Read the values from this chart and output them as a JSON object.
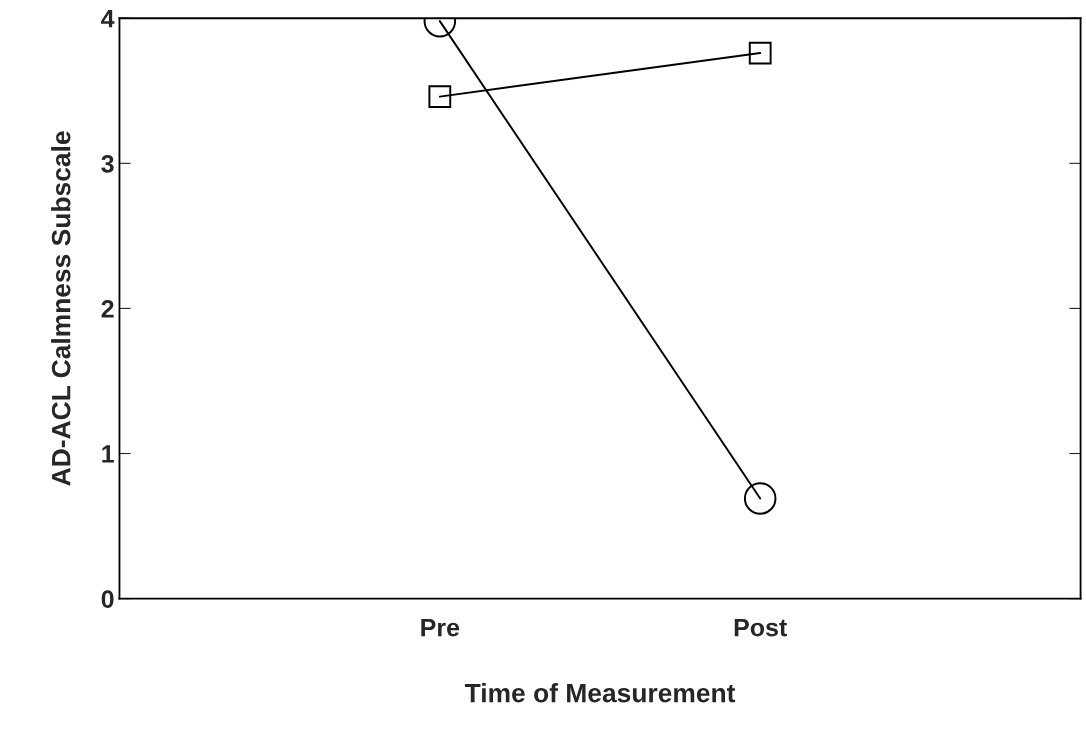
{
  "chart_data": {
    "type": "line",
    "xlabel": "Time of Measurement",
    "ylabel": "AD-ACL Calmness Subscale",
    "categories": [
      null,
      "Pre",
      "Post",
      null
    ],
    "series": [
      {
        "color": "#000000",
        "marker": "circle",
        "values": [
          null,
          3.98,
          0.69,
          null
        ]
      },
      {
        "color": "#000000",
        "marker": "square",
        "values": [
          null,
          3.46,
          3.76,
          null
        ]
      }
    ],
    "ylim": [
      0,
      4
    ],
    "yticks": [
      0,
      1,
      2,
      3,
      4
    ],
    "grid": false,
    "legend": false,
    "line_style": "solid"
  }
}
